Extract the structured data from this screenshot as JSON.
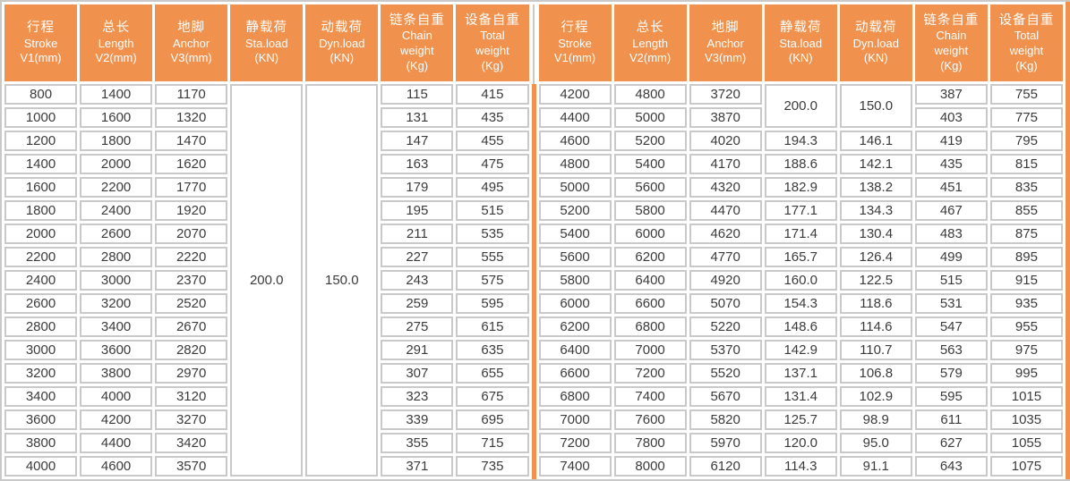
{
  "colors": {
    "accent_orange": "#F0914D",
    "border_gray": "#C9C9C9",
    "data_text": "#3B3B3B",
    "header_text": "#FFFFFF"
  },
  "table": {
    "columns": [
      {
        "name": "stroke",
        "lines": [
          "行程",
          "Stroke",
          "V1(mm)"
        ]
      },
      {
        "name": "length",
        "lines": [
          "总长",
          "Length",
          "V2(mm)"
        ]
      },
      {
        "name": "anchor",
        "lines": [
          "地脚",
          "Anchor",
          "V3(mm)"
        ]
      },
      {
        "name": "static-load",
        "lines": [
          "静载荷",
          "Sta.load",
          "(KN)"
        ]
      },
      {
        "name": "dynamic-load",
        "lines": [
          "动载荷",
          "Dyn.load",
          "(KN)"
        ]
      },
      {
        "name": "chain-weight",
        "lines": [
          "链条自重",
          "Chain",
          "weight",
          "(Kg)"
        ]
      },
      {
        "name": "total-weight",
        "lines": [
          "设备自重",
          "Total",
          "weight",
          "(Kg)"
        ]
      }
    ],
    "left": {
      "merges": [
        {
          "row": 0,
          "col": 3,
          "rowspan": 17,
          "value": "200.0"
        },
        {
          "row": 0,
          "col": 4,
          "rowspan": 17,
          "value": "150.0"
        }
      ],
      "rows": [
        [
          800,
          1400,
          1170,
          null,
          null,
          115,
          415
        ],
        [
          1000,
          1600,
          1320,
          null,
          null,
          131,
          435
        ],
        [
          1200,
          1800,
          1470,
          null,
          null,
          147,
          455
        ],
        [
          1400,
          2000,
          1620,
          null,
          null,
          163,
          475
        ],
        [
          1600,
          2200,
          1770,
          null,
          null,
          179,
          495
        ],
        [
          1800,
          2400,
          1920,
          null,
          null,
          195,
          515
        ],
        [
          2000,
          2600,
          2070,
          null,
          null,
          211,
          535
        ],
        [
          2200,
          2800,
          2220,
          null,
          null,
          227,
          555
        ],
        [
          2400,
          3000,
          2370,
          null,
          null,
          243,
          575
        ],
        [
          2600,
          3200,
          2520,
          null,
          null,
          259,
          595
        ],
        [
          2800,
          3400,
          2670,
          null,
          null,
          275,
          615
        ],
        [
          3000,
          3600,
          2820,
          null,
          null,
          291,
          635
        ],
        [
          3200,
          3800,
          2970,
          null,
          null,
          307,
          655
        ],
        [
          3400,
          4000,
          3120,
          null,
          null,
          323,
          675
        ],
        [
          3600,
          4200,
          3270,
          null,
          null,
          339,
          695
        ],
        [
          3800,
          4400,
          3420,
          null,
          null,
          355,
          715
        ],
        [
          4000,
          4600,
          3570,
          null,
          null,
          371,
          735
        ]
      ]
    },
    "right": {
      "merges": [
        {
          "row": 0,
          "col": 3,
          "rowspan": 2,
          "value": "200.0"
        },
        {
          "row": 0,
          "col": 4,
          "rowspan": 2,
          "value": "150.0"
        }
      ],
      "rows": [
        [
          4200,
          4800,
          3720,
          null,
          null,
          387,
          755
        ],
        [
          4400,
          5000,
          3870,
          null,
          null,
          403,
          775
        ],
        [
          4600,
          5200,
          4020,
          "194.3",
          "146.1",
          419,
          795
        ],
        [
          4800,
          5400,
          4170,
          "188.6",
          "142.1",
          435,
          815
        ],
        [
          5000,
          5600,
          4320,
          "182.9",
          "138.2",
          451,
          835
        ],
        [
          5200,
          5800,
          4470,
          "177.1",
          "134.3",
          467,
          855
        ],
        [
          5400,
          6000,
          4620,
          "171.4",
          "130.4",
          483,
          875
        ],
        [
          5600,
          6200,
          4770,
          "165.7",
          "126.4",
          499,
          895
        ],
        [
          5800,
          6400,
          4920,
          "160.0",
          "122.5",
          515,
          915
        ],
        [
          6000,
          6600,
          5070,
          "154.3",
          "118.6",
          531,
          935
        ],
        [
          6200,
          6800,
          5220,
          "148.6",
          "114.6",
          547,
          955
        ],
        [
          6400,
          7000,
          5370,
          "142.9",
          "110.7",
          563,
          975
        ],
        [
          6600,
          7200,
          5520,
          "137.1",
          "106.8",
          579,
          995
        ],
        [
          6800,
          7400,
          5670,
          "131.4",
          "102.9",
          595,
          1015
        ],
        [
          7000,
          7600,
          5820,
          "125.7",
          "98.9",
          611,
          1035
        ],
        [
          7200,
          7800,
          5970,
          "120.0",
          "95.0",
          627,
          1055
        ],
        [
          7400,
          8000,
          6120,
          "114.3",
          "91.1",
          643,
          1075
        ]
      ]
    }
  }
}
